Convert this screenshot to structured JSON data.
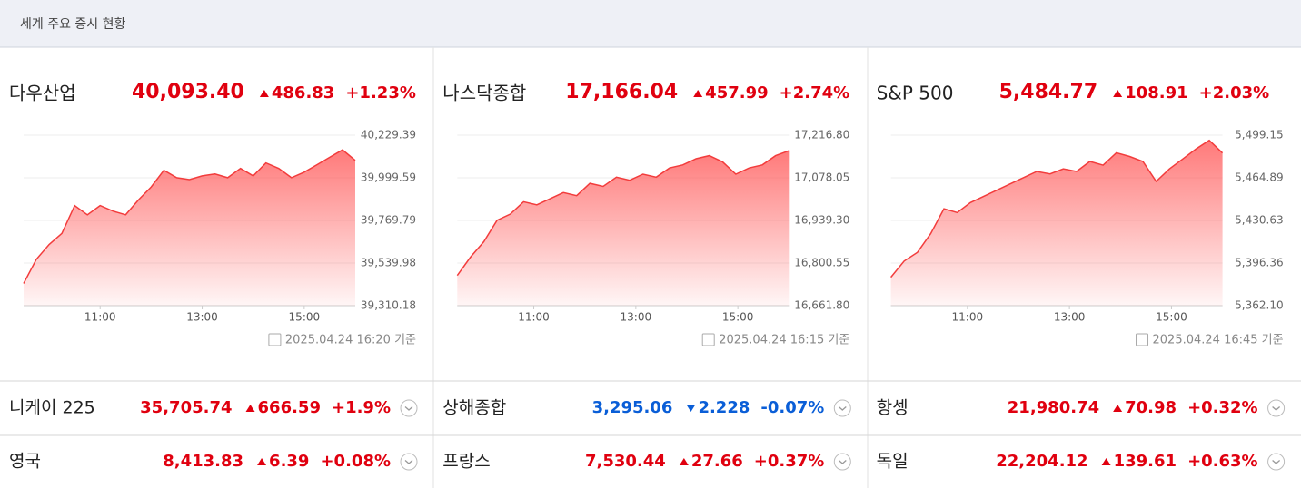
{
  "header": {
    "title": "세계 주요 증시 현황"
  },
  "panels": [
    {
      "name": "다우산업",
      "value": "40,093.40",
      "change": "486.83",
      "pct": "+1.23%",
      "direction": "up",
      "chart": {
        "type": "line",
        "color": "#f23c3c",
        "xlim": [
          "09:30",
          "16:00"
        ],
        "xticks": [
          "11:00",
          "13:00",
          "15:00"
        ],
        "ylim": [
          39310.18,
          40229.39
        ],
        "yticks": [
          {
            "value": 39310.18,
            "label": "39,310.18"
          },
          {
            "value": 39539.98,
            "label": "39,539.98"
          },
          {
            "value": 39769.79,
            "label": "39,769.79"
          },
          {
            "value": 39999.59,
            "label": "39,999.59"
          },
          {
            "value": 40229.39,
            "label": "40,229.39"
          }
        ],
        "values": [
          39430,
          39560,
          39640,
          39700,
          39850,
          39800,
          39850,
          39820,
          39800,
          39880,
          39950,
          40040,
          40000,
          39990,
          40010,
          40020,
          40000,
          40050,
          40010,
          40080,
          40050,
          40000,
          40030,
          40070,
          40110,
          40150,
          40093.4
        ]
      },
      "timestamp": "2025.04.24 16:20 기준"
    },
    {
      "name": "나스닥종합",
      "value": "17,166.04",
      "change": "457.99",
      "pct": "+2.74%",
      "direction": "up",
      "chart": {
        "type": "line",
        "color": "#f23c3c",
        "xlim": [
          "09:30",
          "16:00"
        ],
        "xticks": [
          "11:00",
          "13:00",
          "15:00"
        ],
        "ylim": [
          16661.8,
          17216.8
        ],
        "yticks": [
          {
            "value": 16661.8,
            "label": "16,661.80"
          },
          {
            "value": 16800.55,
            "label": "16,800.55"
          },
          {
            "value": 16939.3,
            "label": "16,939.30"
          },
          {
            "value": 17078.05,
            "label": "17,078.05"
          },
          {
            "value": 17216.8,
            "label": "17,216.80"
          }
        ],
        "values": [
          16760,
          16820,
          16870,
          16940,
          16960,
          17000,
          16990,
          17010,
          17030,
          17020,
          17060,
          17050,
          17080,
          17070,
          17090,
          17080,
          17110,
          17120,
          17140,
          17150,
          17130,
          17090,
          17110,
          17120,
          17150,
          17166.04
        ]
      },
      "timestamp": "2025.04.24 16:15 기준"
    },
    {
      "name": "S&P 500",
      "value": "5,484.77",
      "change": "108.91",
      "pct": "+2.03%",
      "direction": "up",
      "chart": {
        "type": "line",
        "color": "#f23c3c",
        "xlim": [
          "09:30",
          "16:00"
        ],
        "xticks": [
          "11:00",
          "13:00",
          "15:00"
        ],
        "ylim": [
          5362.1,
          5499.15
        ],
        "yticks": [
          {
            "value": 5362.1,
            "label": "5,362.10"
          },
          {
            "value": 5396.36,
            "label": "5,396.36"
          },
          {
            "value": 5430.63,
            "label": "5,430.63"
          },
          {
            "value": 5464.89,
            "label": "5,464.89"
          },
          {
            "value": 5499.15,
            "label": "5,499.15"
          }
        ],
        "values": [
          5385,
          5398,
          5405,
          5420,
          5440,
          5437,
          5445,
          5450,
          5455,
          5460,
          5465,
          5470,
          5468,
          5472,
          5470,
          5478,
          5475,
          5485,
          5482,
          5478,
          5462,
          5472,
          5480,
          5488,
          5495,
          5484.77
        ]
      },
      "timestamp": "2025.04.24 16:45 기준"
    }
  ],
  "rows": [
    [
      {
        "name": "니케이 225",
        "value": "35,705.74",
        "change": "666.59",
        "pct": "+1.9%",
        "direction": "up"
      },
      {
        "name": "상해종합",
        "value": "3,295.06",
        "change": "2.228",
        "pct": "-0.07%",
        "direction": "down"
      },
      {
        "name": "항셍",
        "value": "21,980.74",
        "change": "70.98",
        "pct": "+0.32%",
        "direction": "up"
      }
    ],
    [
      {
        "name": "영국",
        "value": "8,413.83",
        "change": "6.39",
        "pct": "+0.08%",
        "direction": "up"
      },
      {
        "name": "프랑스",
        "value": "7,530.44",
        "change": "27.66",
        "pct": "+0.37%",
        "direction": "up"
      },
      {
        "name": "독일",
        "value": "22,204.12",
        "change": "139.61",
        "pct": "+0.63%",
        "direction": "up"
      }
    ]
  ]
}
